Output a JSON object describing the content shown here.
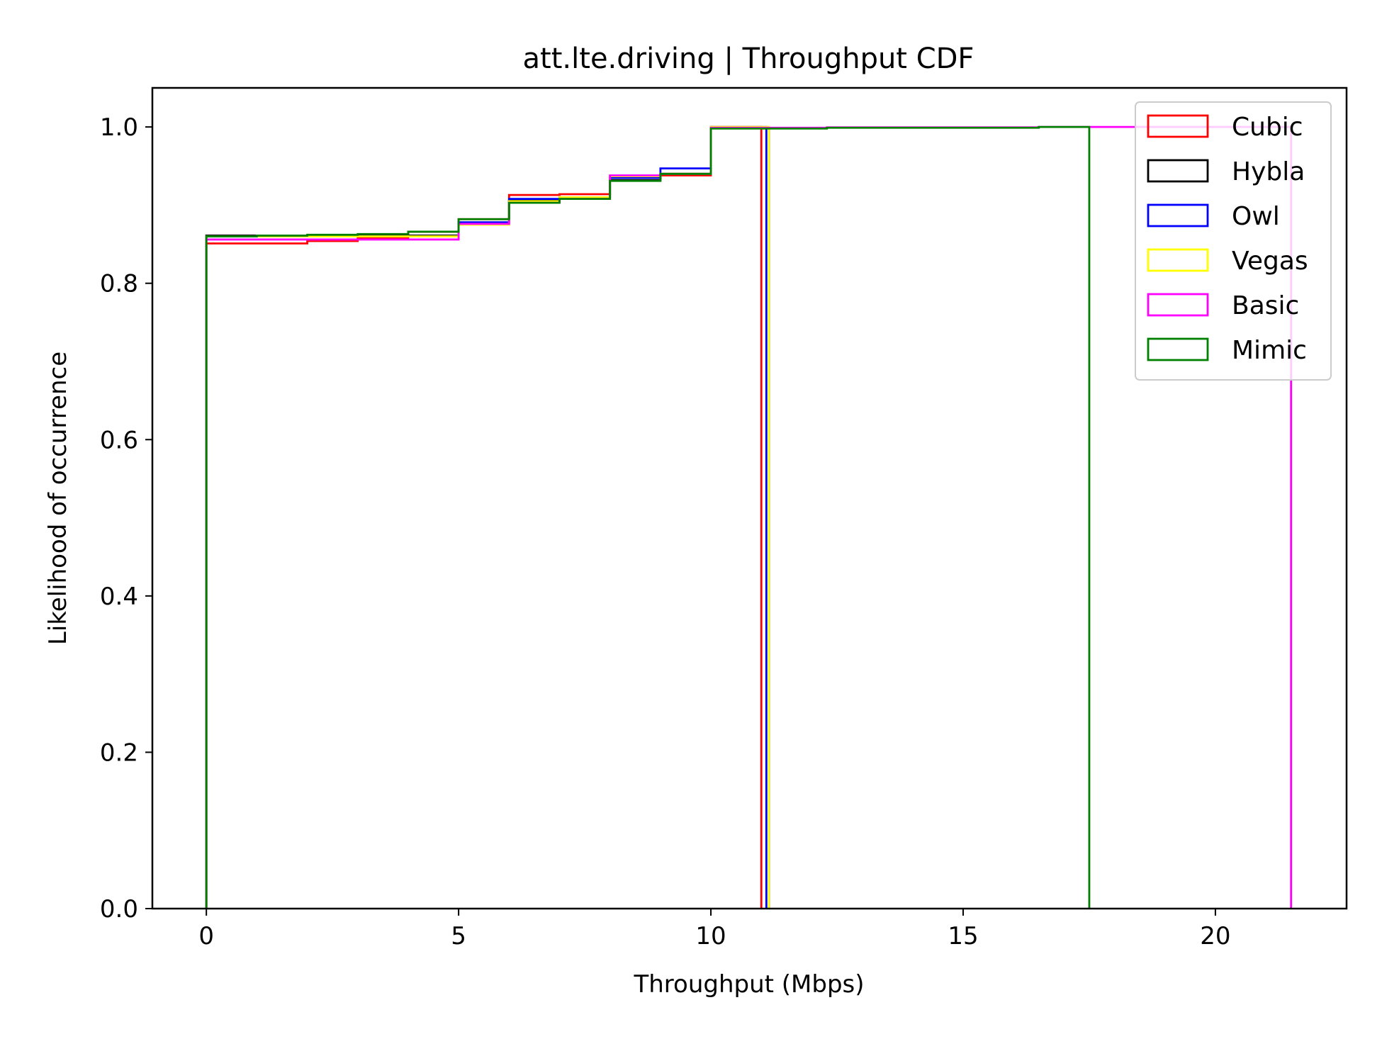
{
  "chart_data": {
    "type": "line",
    "title": "att.lte.driving | Throughput CDF",
    "xlabel": "Throughput (Mbps)",
    "ylabel": "Likelihood of occurrence",
    "xlim": [
      -1.07,
      22.6
    ],
    "ylim": [
      0,
      1.05
    ],
    "xticks": [
      0,
      5,
      10,
      15,
      20
    ],
    "xtick_labels": [
      "0",
      "5",
      "10",
      "15",
      "20"
    ],
    "yticks": [
      0.0,
      0.2,
      0.4,
      0.6,
      0.8,
      1.0
    ],
    "ytick_labels": [
      "0.0",
      "0.2",
      "0.4",
      "0.6",
      "0.8",
      "1.0"
    ],
    "grid": false,
    "legend_position": "top-right",
    "series": [
      {
        "name": "Cubic",
        "color": "#ff0000",
        "x": [
          0,
          2,
          3,
          4,
          5,
          6,
          7,
          8,
          9,
          10,
          11
        ],
        "y": [
          0.851,
          0.854,
          0.858,
          0.866,
          0.882,
          0.913,
          0.914,
          0.936,
          0.938,
          1.0,
          1.0
        ]
      },
      {
        "name": "Hybla",
        "color": "#000000",
        "x": [
          0,
          5,
          6,
          7,
          8,
          9,
          10,
          11.15
        ],
        "y": [
          0.861,
          0.876,
          0.906,
          0.91,
          0.932,
          0.94,
          0.999,
          1.0
        ]
      },
      {
        "name": "Owl",
        "color": "#0000ff",
        "x": [
          0,
          5,
          6,
          7,
          8,
          9,
          10,
          11.1
        ],
        "y": [
          0.86,
          0.878,
          0.908,
          0.91,
          0.935,
          0.947,
          1.0,
          1.0
        ]
      },
      {
        "name": "Vegas",
        "color": "#ffff00",
        "x": [
          0,
          5,
          6,
          7,
          8,
          9,
          10,
          11.15
        ],
        "y": [
          0.86,
          0.875,
          0.905,
          0.91,
          0.937,
          0.94,
          1.0,
          1.0
        ]
      },
      {
        "name": "Basic",
        "color": "#ff00ff",
        "x": [
          0,
          5,
          6,
          7,
          8,
          9,
          10,
          12.3,
          16.5,
          21.5
        ],
        "y": [
          0.856,
          0.876,
          0.903,
          0.908,
          0.938,
          0.94,
          0.999,
          0.9995,
          1.0,
          1.0
        ]
      },
      {
        "name": "Mimic",
        "color": "#008000",
        "x": [
          0,
          1,
          2,
          3,
          4,
          5,
          6,
          7,
          8,
          9,
          10,
          12.3,
          16.5,
          17.5
        ],
        "y": [
          0.86,
          0.861,
          0.862,
          0.863,
          0.866,
          0.882,
          0.903,
          0.908,
          0.931,
          0.94,
          0.998,
          0.999,
          1.0,
          1.0
        ]
      }
    ]
  }
}
